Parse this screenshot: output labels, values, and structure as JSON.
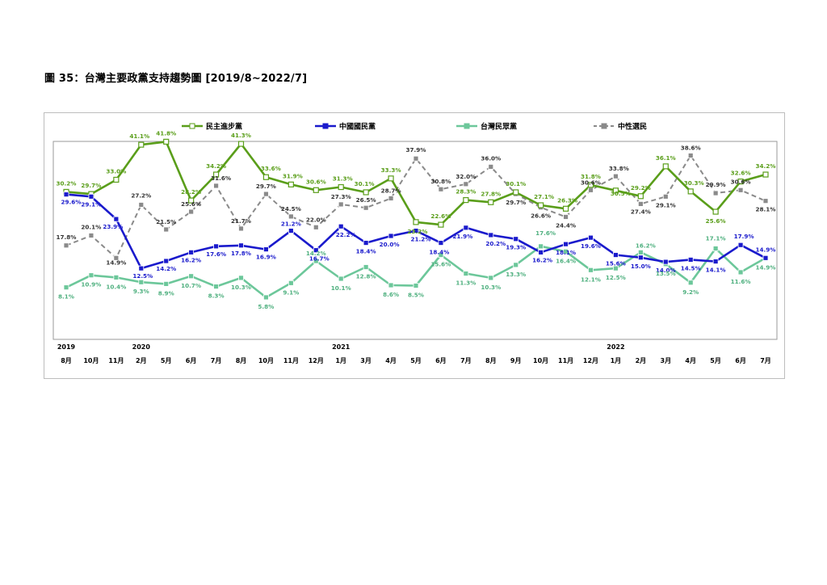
{
  "page": {
    "title": "圖 35：台灣主要政黨支持趨勢圖 [2019/8~2022/7]"
  },
  "chart_data": {
    "type": "line",
    "year_labels": [
      "2019",
      "2020",
      "2021",
      "2022"
    ],
    "year_label_at": [
      0,
      3,
      11,
      22
    ],
    "categories": [
      "8月",
      "10月",
      "11月",
      "2月",
      "5月",
      "6月",
      "7月",
      "8月",
      "10月",
      "11月",
      "12月",
      "1月",
      "3月",
      "4月",
      "5月",
      "6月",
      "7月",
      "8月",
      "9月",
      "10月",
      "11月",
      "12月",
      "1月",
      "2月",
      "3月",
      "4月",
      "5月",
      "6月",
      "7月"
    ],
    "ylim": [
      0,
      45
    ],
    "legend_position": "top",
    "series": [
      {
        "name": "民主進步黨",
        "color": "#5a9e1a",
        "label_color": "#5a9e1a",
        "marker": "square-open",
        "dash": "solid",
        "values": [
          30.2,
          29.7,
          33.0,
          41.1,
          41.8,
          28.2,
          34.2,
          41.3,
          33.6,
          31.9,
          30.6,
          31.3,
          30.1,
          33.3,
          23.2,
          22.6,
          28.3,
          27.8,
          30.1,
          27.1,
          26.3,
          31.8,
          30.5,
          29.2,
          36.1,
          30.3,
          25.6,
          32.6,
          34.2
        ],
        "labels": [
          "30.2%",
          "29.7%",
          "33.0%",
          "41.1%",
          "41.8%",
          "28.2%",
          "34.2%",
          "41.3%",
          "33.6%",
          "31.9%",
          "30.6%",
          "31.3%",
          "30.1%",
          "33.3%",
          "23.2%",
          "22.6%",
          "28.3%",
          "27.8%",
          "30.1%",
          "27.1%",
          "26.3%",
          "31.8%",
          "30.5%",
          "29.2%",
          "36.1%",
          "30.3%",
          "25.6%",
          "32.6%",
          "34.2%"
        ]
      },
      {
        "name": "中國國民黨",
        "color": "#1a1acc",
        "label_color": "#1a1acc",
        "marker": "square-filled",
        "dash": "solid",
        "values": [
          29.6,
          29.1,
          23.9,
          12.5,
          14.2,
          16.2,
          17.6,
          17.8,
          16.9,
          21.2,
          16.7,
          22.2,
          18.4,
          20.0,
          21.2,
          18.4,
          21.9,
          20.2,
          19.3,
          16.2,
          18.1,
          19.6,
          15.6,
          15.0,
          14.0,
          14.5,
          14.1,
          17.9,
          14.9
        ],
        "labels": [
          "29.6%",
          "29.1%",
          "23.9%",
          "12.5%",
          "14.2%",
          "16.2%",
          "17.6%",
          "17.8%",
          "16.9%",
          "21.2%",
          "16.7%",
          "22.2%",
          "18.4%",
          "20.0%",
          "21.2%",
          "18.4%",
          "21.9%",
          "20.2%",
          "19.3%",
          "16.2%",
          "18.1%",
          "19.6%",
          "15.6%",
          "15.0%",
          "14.0%",
          "14.5%",
          "14.1%",
          "17.9%",
          "14.9%"
        ]
      },
      {
        "name": "台灣民眾黨",
        "color": "#6cc79a",
        "label_color": "#4fb07f",
        "marker": "square-filled",
        "dash": "solid",
        "values": [
          8.1,
          10.9,
          10.4,
          9.3,
          8.9,
          10.7,
          8.3,
          10.3,
          5.8,
          9.1,
          14.2,
          10.1,
          12.8,
          8.6,
          8.5,
          15.6,
          11.3,
          10.3,
          13.3,
          17.6,
          16.4,
          12.1,
          12.5,
          16.2,
          13.5,
          9.2,
          17.1,
          11.6,
          14.9
        ],
        "labels": [
          "8.1%",
          "10.9%",
          "10.4%",
          "9.3%",
          "8.9%",
          "10.7%",
          "8.3%",
          "10.3%",
          "5.8%",
          "9.1%",
          "14.2%",
          "10.1%",
          "12.8%",
          "8.6%",
          "8.5%",
          "15.6%",
          "11.3%",
          "10.3%",
          "13.3%",
          "17.6%",
          "16.4%",
          "12.1%",
          "12.5%",
          "16.2%",
          "13.5%",
          "9.2%",
          "17.1%",
          "11.6%",
          "14.9%"
        ]
      },
      {
        "name": "中性選民",
        "color": "#8a8a8a",
        "label_color": "#333333",
        "marker": "square-filled",
        "dash": "dashed",
        "values": [
          17.8,
          20.1,
          14.9,
          27.2,
          21.5,
          25.6,
          31.6,
          21.7,
          29.7,
          24.5,
          22.0,
          27.3,
          26.5,
          28.7,
          37.9,
          30.8,
          32.0,
          36.0,
          29.7,
          26.6,
          24.4,
          30.6,
          33.8,
          27.4,
          29.1,
          38.6,
          29.9,
          30.6,
          28.1
        ],
        "labels": [
          "17.8%",
          "20.1%",
          "14.9%",
          "27.2%",
          "21.5%",
          "25.6%",
          "31.6%",
          "21.7%",
          "29.7%",
          "24.5%",
          "22.0%",
          "27.3%",
          "26.5%",
          "28.7%",
          "37.9%",
          "30.8%",
          "32.0%",
          "36.0%",
          "29.7%",
          "26.6%",
          "24.4%",
          "30.6%",
          "33.8%",
          "27.4%",
          "29.1%",
          "38.6%",
          "29.9%",
          "30.6%",
          "28.1%"
        ]
      }
    ]
  }
}
